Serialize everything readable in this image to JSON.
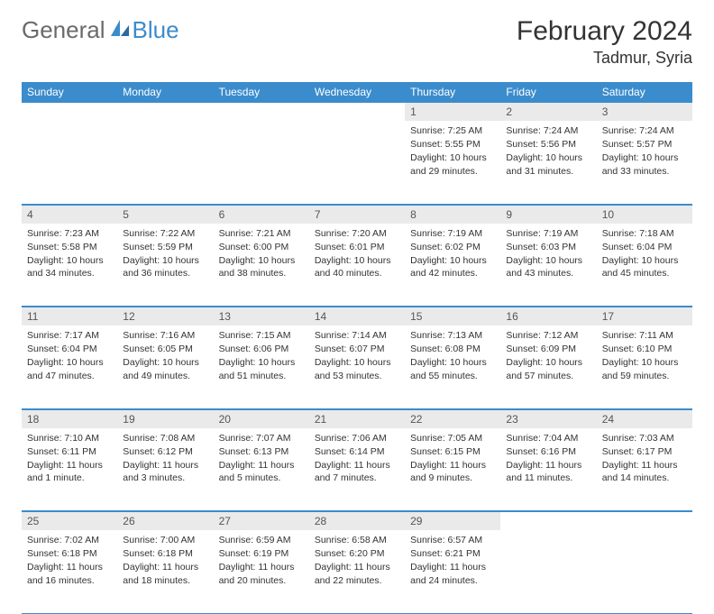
{
  "logo": {
    "general": "General",
    "blue": "Blue"
  },
  "title": "February 2024",
  "location": "Tadmur, Syria",
  "colors": {
    "header_bg": "#3b8ccc",
    "header_text": "#ffffff",
    "daynum_bg": "#eaeaea",
    "border": "#3b8ccc",
    "logo_gray": "#6a6a6a",
    "logo_blue": "#3b8ccc"
  },
  "day_headers": [
    "Sunday",
    "Monday",
    "Tuesday",
    "Wednesday",
    "Thursday",
    "Friday",
    "Saturday"
  ],
  "weeks": [
    [
      null,
      null,
      null,
      null,
      {
        "n": "1",
        "sunrise": "7:25 AM",
        "sunset": "5:55 PM",
        "daylight": "10 hours and 29 minutes."
      },
      {
        "n": "2",
        "sunrise": "7:24 AM",
        "sunset": "5:56 PM",
        "daylight": "10 hours and 31 minutes."
      },
      {
        "n": "3",
        "sunrise": "7:24 AM",
        "sunset": "5:57 PM",
        "daylight": "10 hours and 33 minutes."
      }
    ],
    [
      {
        "n": "4",
        "sunrise": "7:23 AM",
        "sunset": "5:58 PM",
        "daylight": "10 hours and 34 minutes."
      },
      {
        "n": "5",
        "sunrise": "7:22 AM",
        "sunset": "5:59 PM",
        "daylight": "10 hours and 36 minutes."
      },
      {
        "n": "6",
        "sunrise": "7:21 AM",
        "sunset": "6:00 PM",
        "daylight": "10 hours and 38 minutes."
      },
      {
        "n": "7",
        "sunrise": "7:20 AM",
        "sunset": "6:01 PM",
        "daylight": "10 hours and 40 minutes."
      },
      {
        "n": "8",
        "sunrise": "7:19 AM",
        "sunset": "6:02 PM",
        "daylight": "10 hours and 42 minutes."
      },
      {
        "n": "9",
        "sunrise": "7:19 AM",
        "sunset": "6:03 PM",
        "daylight": "10 hours and 43 minutes."
      },
      {
        "n": "10",
        "sunrise": "7:18 AM",
        "sunset": "6:04 PM",
        "daylight": "10 hours and 45 minutes."
      }
    ],
    [
      {
        "n": "11",
        "sunrise": "7:17 AM",
        "sunset": "6:04 PM",
        "daylight": "10 hours and 47 minutes."
      },
      {
        "n": "12",
        "sunrise": "7:16 AM",
        "sunset": "6:05 PM",
        "daylight": "10 hours and 49 minutes."
      },
      {
        "n": "13",
        "sunrise": "7:15 AM",
        "sunset": "6:06 PM",
        "daylight": "10 hours and 51 minutes."
      },
      {
        "n": "14",
        "sunrise": "7:14 AM",
        "sunset": "6:07 PM",
        "daylight": "10 hours and 53 minutes."
      },
      {
        "n": "15",
        "sunrise": "7:13 AM",
        "sunset": "6:08 PM",
        "daylight": "10 hours and 55 minutes."
      },
      {
        "n": "16",
        "sunrise": "7:12 AM",
        "sunset": "6:09 PM",
        "daylight": "10 hours and 57 minutes."
      },
      {
        "n": "17",
        "sunrise": "7:11 AM",
        "sunset": "6:10 PM",
        "daylight": "10 hours and 59 minutes."
      }
    ],
    [
      {
        "n": "18",
        "sunrise": "7:10 AM",
        "sunset": "6:11 PM",
        "daylight": "11 hours and 1 minute."
      },
      {
        "n": "19",
        "sunrise": "7:08 AM",
        "sunset": "6:12 PM",
        "daylight": "11 hours and 3 minutes."
      },
      {
        "n": "20",
        "sunrise": "7:07 AM",
        "sunset": "6:13 PM",
        "daylight": "11 hours and 5 minutes."
      },
      {
        "n": "21",
        "sunrise": "7:06 AM",
        "sunset": "6:14 PM",
        "daylight": "11 hours and 7 minutes."
      },
      {
        "n": "22",
        "sunrise": "7:05 AM",
        "sunset": "6:15 PM",
        "daylight": "11 hours and 9 minutes."
      },
      {
        "n": "23",
        "sunrise": "7:04 AM",
        "sunset": "6:16 PM",
        "daylight": "11 hours and 11 minutes."
      },
      {
        "n": "24",
        "sunrise": "7:03 AM",
        "sunset": "6:17 PM",
        "daylight": "11 hours and 14 minutes."
      }
    ],
    [
      {
        "n": "25",
        "sunrise": "7:02 AM",
        "sunset": "6:18 PM",
        "daylight": "11 hours and 16 minutes."
      },
      {
        "n": "26",
        "sunrise": "7:00 AM",
        "sunset": "6:18 PM",
        "daylight": "11 hours and 18 minutes."
      },
      {
        "n": "27",
        "sunrise": "6:59 AM",
        "sunset": "6:19 PM",
        "daylight": "11 hours and 20 minutes."
      },
      {
        "n": "28",
        "sunrise": "6:58 AM",
        "sunset": "6:20 PM",
        "daylight": "11 hours and 22 minutes."
      },
      {
        "n": "29",
        "sunrise": "6:57 AM",
        "sunset": "6:21 PM",
        "daylight": "11 hours and 24 minutes."
      },
      null,
      null
    ]
  ],
  "labels": {
    "sunrise": "Sunrise:",
    "sunset": "Sunset:",
    "daylight": "Daylight:"
  }
}
